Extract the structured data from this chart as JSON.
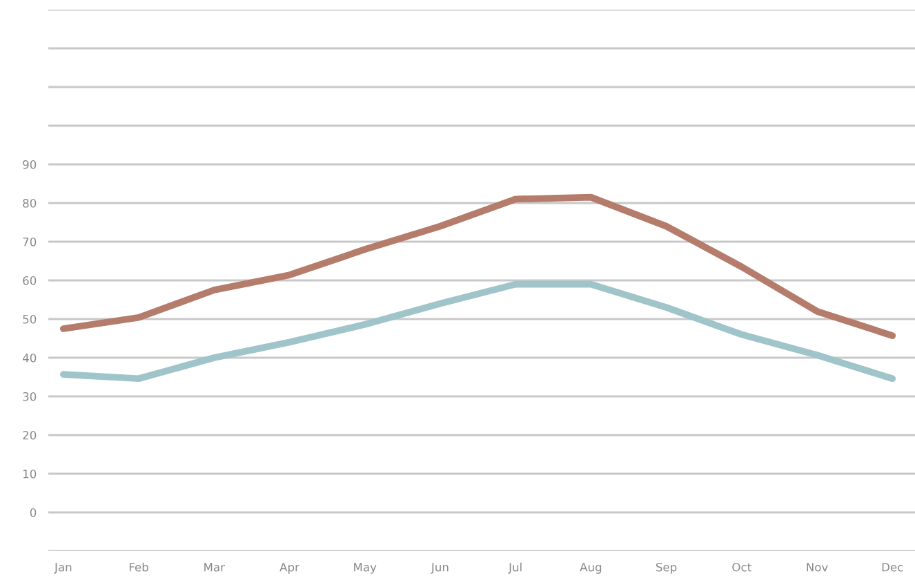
{
  "chart_data": {
    "type": "line",
    "categories": [
      "Jan",
      "Feb",
      "Mar",
      "Apr",
      "May",
      "Jun",
      "Jul",
      "Aug",
      "Sep",
      "Oct",
      "Nov",
      "Dec"
    ],
    "series": [
      {
        "color": "#b57c6c",
        "values": [
          47.5,
          50.4,
          57.5,
          61.4,
          68,
          74,
          81,
          81.5,
          74,
          63.5,
          52,
          45.7
        ]
      },
      {
        "color": "#9fc4c9",
        "values": [
          35.7,
          34.6,
          40,
          44,
          48.6,
          54,
          59,
          59,
          53,
          46,
          40.7,
          34.6
        ]
      }
    ],
    "ylim": [
      -10,
      130
    ],
    "yticks": [
      {
        "value": -10,
        "label": null
      },
      0,
      10,
      20,
      30,
      40,
      50,
      60,
      70,
      80,
      90,
      {
        "value": 100,
        "label": null
      },
      {
        "value": 110,
        "label": null
      },
      {
        "value": 120,
        "label": null
      },
      {
        "value": 130,
        "label": null
      }
    ],
    "grid": "y",
    "marker": "none",
    "line_style": "solid"
  }
}
